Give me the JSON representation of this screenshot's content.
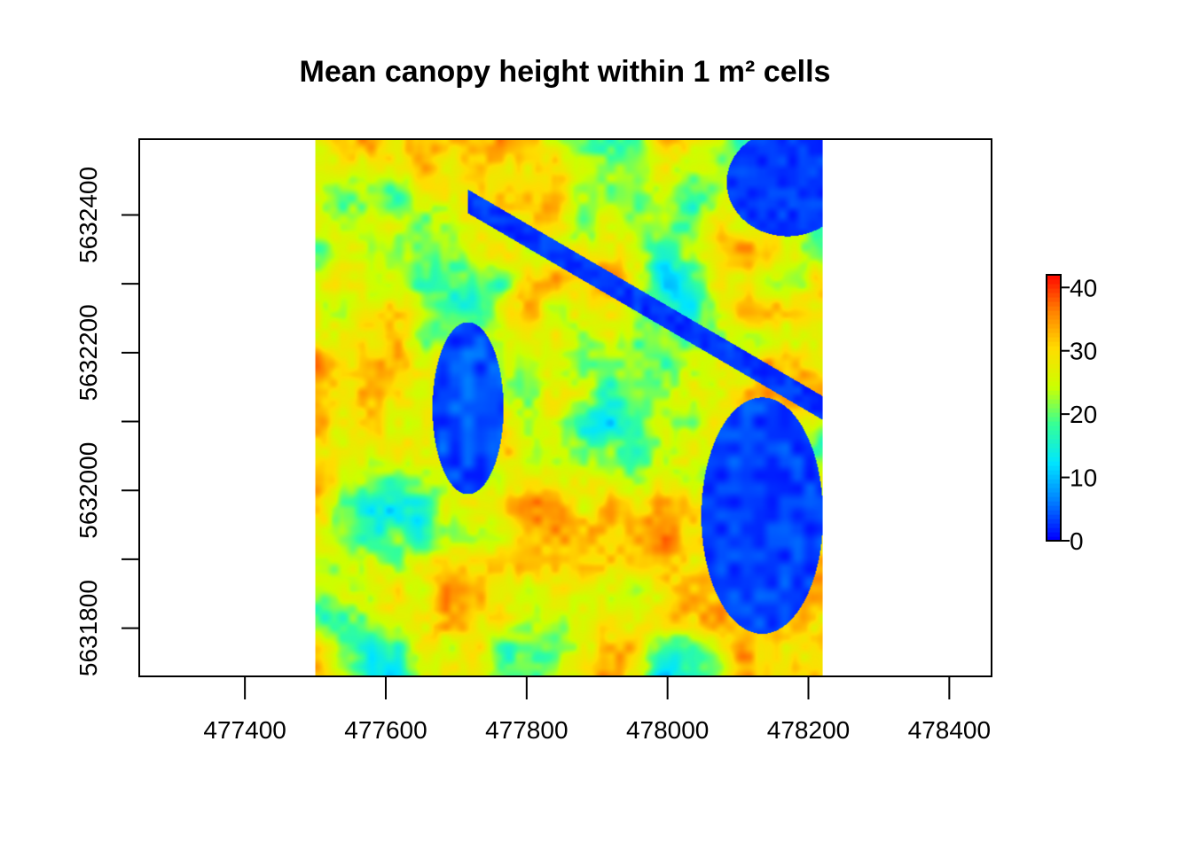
{
  "chart_data": {
    "type": "heatmap",
    "title": "Mean canopy height within 1 m² cells",
    "xlabel": "",
    "ylabel": "",
    "xlim": [
      477250,
      478460
    ],
    "ylim": [
      5631730,
      5632510
    ],
    "raster_extent": {
      "x": [
        477500,
        478220
      ],
      "y": [
        5631730,
        5632510
      ]
    },
    "x_ticks": [
      477400,
      477600,
      477800,
      478000,
      478200,
      478400
    ],
    "y_ticks": [
      5631800,
      5631900,
      5632000,
      5632100,
      5632200,
      5632300,
      5632400
    ],
    "y_tick_labels": [
      5631800,
      5632000,
      5632200,
      5632400
    ],
    "colorbar": {
      "min": 0,
      "max": 42,
      "ticks": [
        0,
        10,
        20,
        30,
        40
      ],
      "colors": [
        "#0000ff",
        "#0080ff",
        "#00e5ff",
        "#33ff99",
        "#ccff00",
        "#ffdd00",
        "#ff8000",
        "#ff0000"
      ]
    },
    "grid": false
  }
}
